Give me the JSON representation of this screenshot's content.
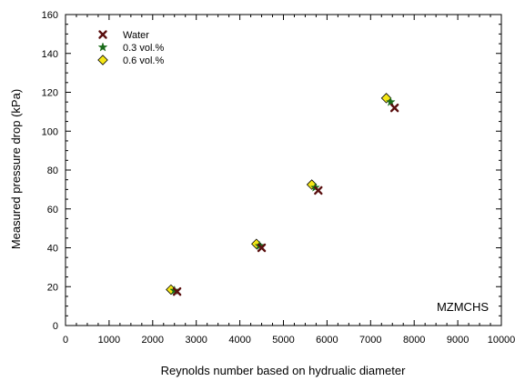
{
  "chart_data": {
    "type": "scatter",
    "title": "",
    "xlabel": "Reynolds number based on hydrualic diameter",
    "ylabel": "Measured pressure drop (kPa)",
    "xlim": [
      0,
      10000
    ],
    "ylim": [
      0,
      160
    ],
    "x_ticks": [
      0,
      1000,
      2000,
      3000,
      4000,
      5000,
      6000,
      7000,
      8000,
      9000,
      10000
    ],
    "y_ticks": [
      0,
      20,
      40,
      60,
      80,
      100,
      120,
      140,
      160
    ],
    "x_tick_labels": [
      "0",
      "1000",
      "2000",
      "3000",
      "4000",
      "5000",
      "6000",
      "7000",
      "8000",
      "9000",
      "10000"
    ],
    "y_tick_labels": [
      "0",
      "20",
      "40",
      "60",
      "80",
      "100",
      "120",
      "140",
      "160"
    ],
    "grid": false,
    "legend_position": "top-left",
    "annotation": "MZMCHS",
    "series": [
      {
        "name": "Water",
        "marker": "x-cross",
        "color": "#5a0f0f",
        "points": [
          {
            "x": 2560,
            "y": 17.5
          },
          {
            "x": 4500,
            "y": 40
          },
          {
            "x": 5800,
            "y": 69.5
          },
          {
            "x": 7550,
            "y": 112
          }
        ]
      },
      {
        "name": "0.3 vol.%",
        "marker": "star",
        "color": "#1a6b1a",
        "points": [
          {
            "x": 2500,
            "y": 18
          },
          {
            "x": 4450,
            "y": 41
          },
          {
            "x": 5730,
            "y": 71
          },
          {
            "x": 7460,
            "y": 115
          }
        ]
      },
      {
        "name": "0.6 vol.%",
        "marker": "diamond",
        "color": "#f5e616",
        "points": [
          {
            "x": 2420,
            "y": 18.5
          },
          {
            "x": 4380,
            "y": 42
          },
          {
            "x": 5650,
            "y": 72.5
          },
          {
            "x": 7360,
            "y": 117
          }
        ]
      }
    ]
  }
}
